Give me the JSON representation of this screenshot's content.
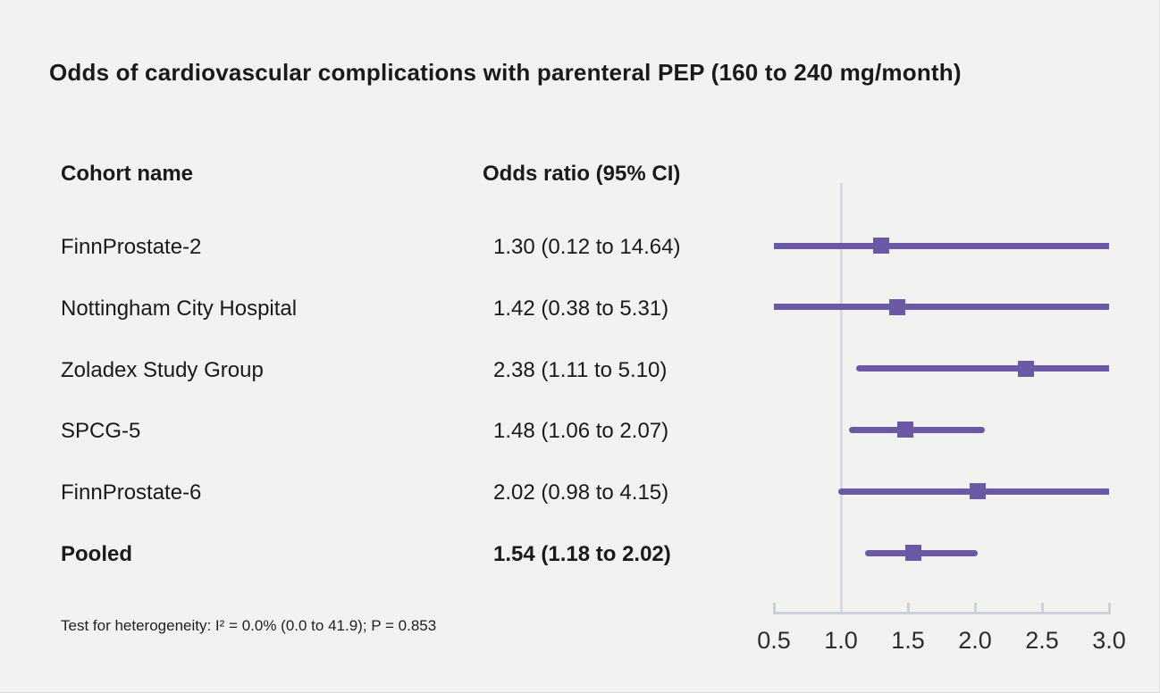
{
  "title": "Odds of cardiovascular complications with parenteral PEP (160 to 240 mg/month)",
  "columns": {
    "cohort": "Cohort name",
    "odds": "Odds ratio (95% CI)"
  },
  "footnote": "Test for heterogeneity: I² = 0.0% (0.0 to 41.9); P = 0.853",
  "colors": {
    "background": "#f2f2f1",
    "text": "#1a1a1a",
    "marker_purple": "#6b59a6",
    "reference_line": "#d8dbe4",
    "axis": "#ccd1d9"
  },
  "chart_data": {
    "type": "forest",
    "title": "Odds of cardiovascular complications with parenteral PEP (160 to 240 mg/month)",
    "xlabel": "",
    "xlim": [
      0.5,
      3.0
    ],
    "x_ticks": [
      0.5,
      1.0,
      1.5,
      2.0,
      2.5,
      3.0
    ],
    "reference_value": 1.0,
    "grid": false,
    "legend": "none",
    "rows": [
      {
        "name": "FinnProstate-2",
        "label": "1.30 (0.12 to 14.64)",
        "estimate": 1.3,
        "ci_low": 0.12,
        "ci_high": 14.64,
        "pooled": false
      },
      {
        "name": "Nottingham City Hospital",
        "label": "1.42 (0.38 to 5.31)",
        "estimate": 1.42,
        "ci_low": 0.38,
        "ci_high": 5.31,
        "pooled": false
      },
      {
        "name": "Zoladex Study Group",
        "label": "2.38 (1.11 to 5.10)",
        "estimate": 2.38,
        "ci_low": 1.11,
        "ci_high": 5.1,
        "pooled": false
      },
      {
        "name": "SPCG-5",
        "label": "1.48 (1.06 to 2.07)",
        "estimate": 1.48,
        "ci_low": 1.06,
        "ci_high": 2.07,
        "pooled": false
      },
      {
        "name": "FinnProstate-6",
        "label": "2.02 (0.98 to 4.15)",
        "estimate": 2.02,
        "ci_low": 0.98,
        "ci_high": 4.15,
        "pooled": false
      },
      {
        "name": "Pooled",
        "label": "1.54 (1.18 to 2.02)",
        "estimate": 1.54,
        "ci_low": 1.18,
        "ci_high": 2.02,
        "pooled": true
      }
    ]
  }
}
